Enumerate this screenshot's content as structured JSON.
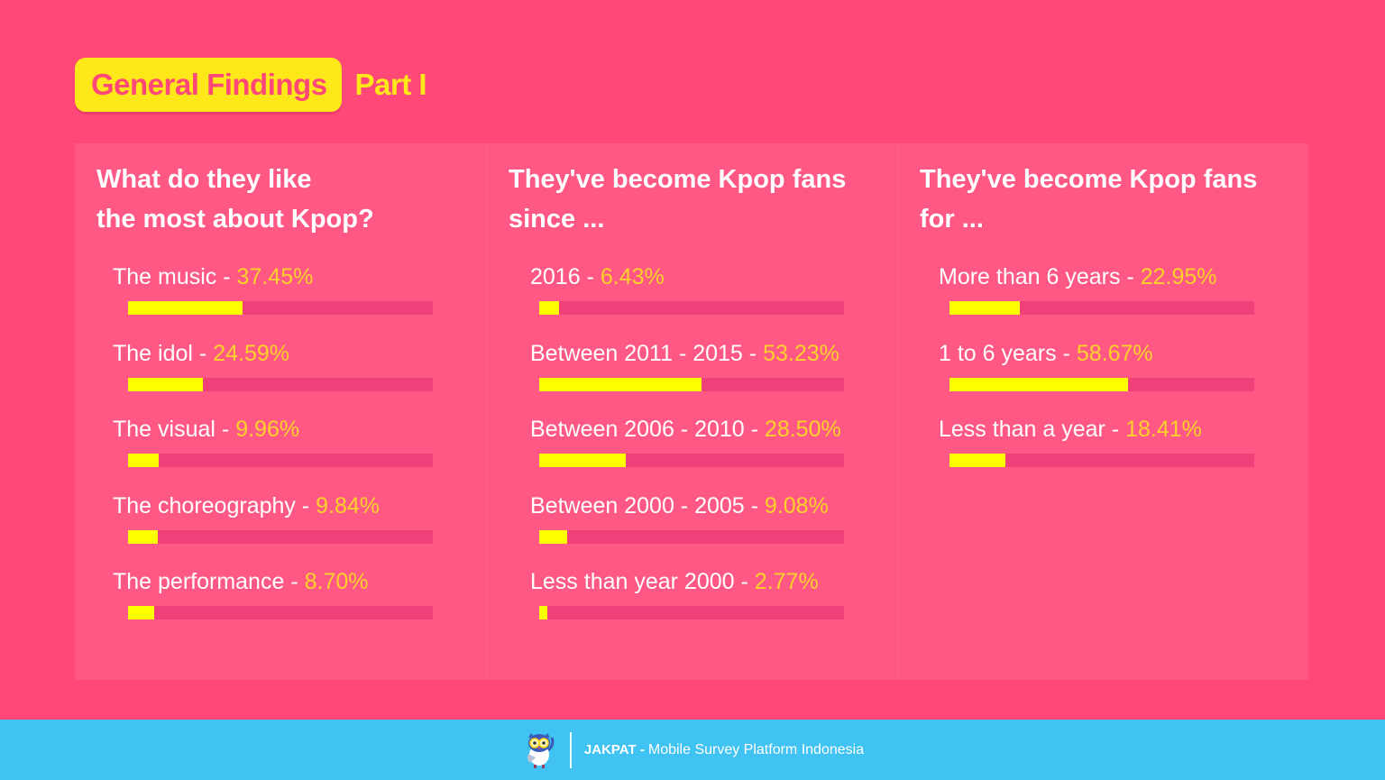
{
  "header": {
    "title": "General Findings",
    "part": "Part I"
  },
  "colors": {
    "background": "#ff4878",
    "panel": "#ff5884",
    "bar_track": "#f0407a",
    "bar_fill": "#ffff00",
    "percent_text": "#ffd12a",
    "title_pill": "#ffe81a",
    "footer": "#40c2f2"
  },
  "panels": [
    {
      "title": "What do they like\nthe most about Kpop?",
      "items": [
        {
          "label": "The music",
          "pct": "37.45%",
          "value": 37.45
        },
        {
          "label": "The idol",
          "pct": "24.59%",
          "value": 24.59
        },
        {
          "label": "The visual",
          "pct": "9.96%",
          "value": 9.96
        },
        {
          "label": "The choreography",
          "pct": "9.84%",
          "value": 9.84
        },
        {
          "label": "The performance",
          "pct": "8.70%",
          "value": 8.7
        }
      ]
    },
    {
      "title": "They've become Kpop fans\nsince ...",
      "items": [
        {
          "label": "2016",
          "pct": "6.43%",
          "value": 6.43
        },
        {
          "label": "Between 2011 - 2015",
          "pct": "53.23%",
          "value": 53.23
        },
        {
          "label": "Between 2006 - 2010",
          "pct": "28.50%",
          "value": 28.5
        },
        {
          "label": "Between 2000 - 2005",
          "pct": "9.08%",
          "value": 9.08
        },
        {
          "label": "Less than year 2000",
          "pct": "2.77%",
          "value": 2.77
        }
      ]
    },
    {
      "title": "They've become Kpop fans\nfor ...",
      "items": [
        {
          "label": "More than 6 years",
          "pct": "22.95%",
          "value": 22.95
        },
        {
          "label": "1 to 6 years",
          "pct": "58.67%",
          "value": 58.67
        },
        {
          "label": "Less than a year",
          "pct": "18.41%",
          "value": 18.41
        }
      ]
    }
  ],
  "separator": "-",
  "footer": {
    "brand": "JAKPAT -",
    "text": "Mobile Survey Platform Indonesia",
    "logo_icon": "owl-mascot-icon"
  },
  "chart_data": [
    {
      "type": "bar",
      "orientation": "horizontal",
      "title": "What do they like the most about Kpop?",
      "categories": [
        "The music",
        "The idol",
        "The visual",
        "The choreography",
        "The performance"
      ],
      "values": [
        37.45,
        24.59,
        9.96,
        9.84,
        8.7
      ],
      "unit": "%",
      "xlim": [
        0,
        100
      ],
      "grid": false,
      "legend": null
    },
    {
      "type": "bar",
      "orientation": "horizontal",
      "title": "They've become Kpop fans since ...",
      "categories": [
        "2016",
        "Between 2011 - 2015",
        "Between 2006 - 2010",
        "Between 2000 - 2005",
        "Less than year 2000"
      ],
      "values": [
        6.43,
        53.23,
        28.5,
        9.08,
        2.77
      ],
      "unit": "%",
      "xlim": [
        0,
        100
      ],
      "grid": false,
      "legend": null
    },
    {
      "type": "bar",
      "orientation": "horizontal",
      "title": "They've become Kpop fans for ...",
      "categories": [
        "More than 6 years",
        "1 to 6 years",
        "Less than a year"
      ],
      "values": [
        22.95,
        58.67,
        18.41
      ],
      "unit": "%",
      "xlim": [
        0,
        100
      ],
      "grid": false,
      "legend": null
    }
  ]
}
